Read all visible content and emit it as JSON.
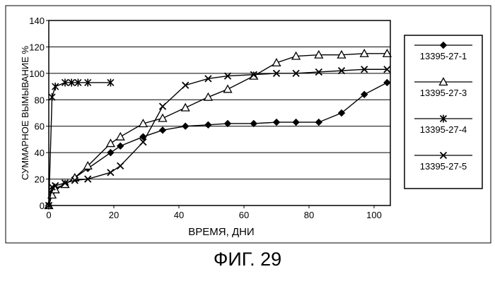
{
  "caption": "ФИГ. 29",
  "chart_data": {
    "type": "line",
    "title": "",
    "xlabel": "ВРЕМЯ, ДНИ",
    "ylabel": "СУММАРНОЕ ВЫМЫВАНИЕ %",
    "xlim": [
      0,
      105
    ],
    "ylim": [
      0,
      140
    ],
    "xticks": [
      0,
      20,
      40,
      60,
      80,
      100
    ],
    "yticks": [
      0,
      20,
      40,
      60,
      80,
      100,
      120,
      140
    ],
    "grid": "horizontal",
    "legend_position": "right",
    "series": [
      {
        "name": "13395-27-1",
        "marker": "diamond",
        "x": [
          0,
          1,
          2,
          5,
          8,
          12,
          19,
          22,
          29,
          35,
          42,
          49,
          55,
          63,
          70,
          76,
          83,
          90,
          97,
          104
        ],
        "y": [
          0,
          10,
          13,
          16,
          21,
          28,
          40,
          45,
          52,
          57,
          60,
          61,
          62,
          62,
          63,
          63,
          63,
          70,
          84,
          93
        ]
      },
      {
        "name": "13395-27-3",
        "marker": "triangle",
        "x": [
          0,
          1,
          2,
          5,
          8,
          12,
          19,
          22,
          29,
          35,
          42,
          49,
          55,
          63,
          70,
          76,
          83,
          90,
          97,
          104
        ],
        "y": [
          0,
          8,
          12,
          16,
          21,
          30,
          47,
          52,
          62,
          66,
          74,
          82,
          88,
          98,
          108,
          113,
          114,
          114,
          115,
          115
        ]
      },
      {
        "name": "13395-27-4",
        "marker": "asterisk",
        "x": [
          0,
          1,
          2,
          5,
          7,
          9,
          12,
          19
        ],
        "y": [
          0,
          82,
          90,
          93,
          93,
          93,
          93,
          93
        ]
      },
      {
        "name": "13395-27-5",
        "marker": "x",
        "x": [
          0,
          1,
          2,
          5,
          8,
          12,
          19,
          22,
          29,
          35,
          42,
          49,
          55,
          63,
          70,
          76,
          83,
          90,
          97,
          104
        ],
        "y": [
          0,
          14,
          15,
          17,
          19,
          20,
          25,
          30,
          48,
          75,
          91,
          96,
          98,
          99,
          100,
          100,
          101,
          102,
          103,
          103
        ]
      }
    ]
  }
}
